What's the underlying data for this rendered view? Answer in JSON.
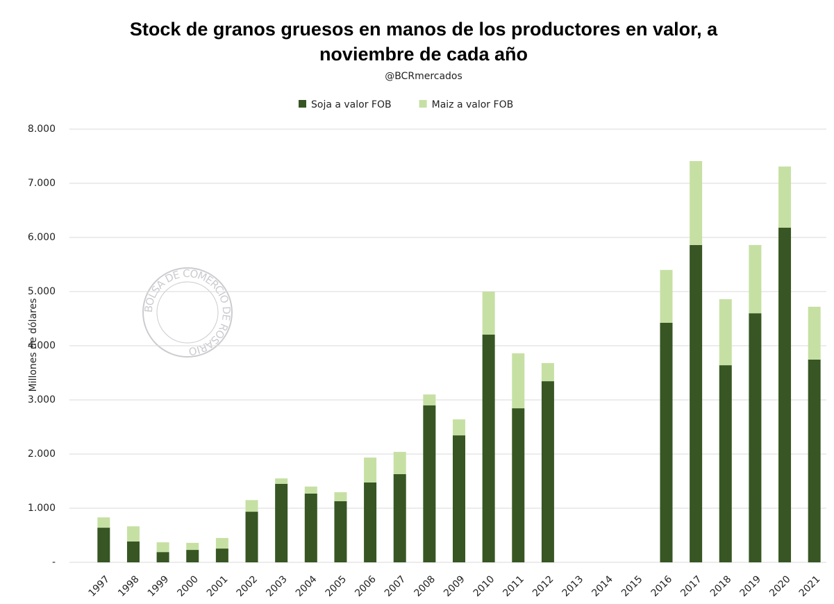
{
  "chart_data": {
    "type": "stacked_bar",
    "title": [
      "Stock de granos gruesos en manos de los productores en valor, a",
      "noviembre de cada año"
    ],
    "subtitle": "@BCRmercados",
    "y_label": "Millones de dólares",
    "watermark": "BOLSA DE COMERCIO DE ROSARIO",
    "categories": [
      "1997",
      "1998",
      "1999",
      "2000",
      "2001",
      "2002",
      "2003",
      "2004",
      "2005",
      "2006",
      "2007",
      "2008",
      "2009",
      "2010",
      "2011",
      "2012",
      "2013",
      "2014",
      "2015",
      "2016",
      "2017",
      "2018",
      "2019",
      "2020",
      "2021"
    ],
    "series": [
      {
        "name": "Soja a valor FOB",
        "color": "#375623",
        "values": [
          640,
          385,
          190,
          230,
          255,
          935,
          1450,
          1270,
          1130,
          1475,
          1630,
          2900,
          2345,
          4205,
          2845,
          3345,
          null,
          null,
          null,
          4425,
          5860,
          3640,
          4600,
          6180,
          3745
        ]
      },
      {
        "name": "Maiz a valor FOB",
        "color": "#c6e0a4",
        "values": [
          190,
          280,
          180,
          130,
          195,
          215,
          100,
          130,
          165,
          460,
          410,
          200,
          295,
          795,
          1015,
          335,
          null,
          null,
          null,
          975,
          1550,
          1220,
          1260,
          1130,
          975
        ]
      }
    ],
    "ylim": [
      0,
      8000
    ],
    "yticks": [
      {
        "value": 0,
        "label": "-"
      },
      {
        "value": 1000,
        "label": "1.000"
      },
      {
        "value": 2000,
        "label": "2.000"
      },
      {
        "value": 3000,
        "label": "3.000"
      },
      {
        "value": 4000,
        "label": "4.000"
      },
      {
        "value": 5000,
        "label": "5.000"
      },
      {
        "value": 6000,
        "label": "6.000"
      },
      {
        "value": 7000,
        "label": "7.000"
      },
      {
        "value": 8000,
        "label": "8.000"
      }
    ],
    "grid": true,
    "legend": "top"
  }
}
